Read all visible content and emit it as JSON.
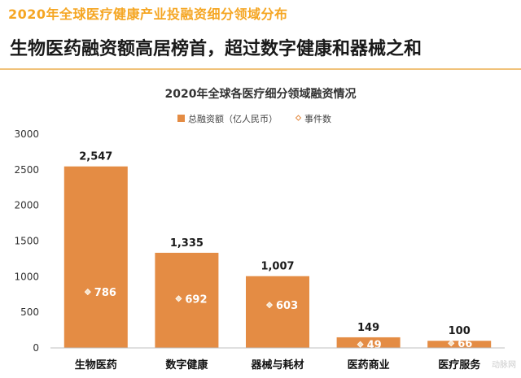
{
  "header": {
    "title": "2020年全球医疗健康产业投融资细分领域分布",
    "subtitle": "生物医药融资额高居榜首，超过数字健康和器械之和"
  },
  "colors": {
    "bar": "#E48C44",
    "header_title": "#F5A623",
    "marker": "#F7E3C8",
    "count_label_last": "#C0392B"
  },
  "watermark": "动脉网",
  "chart_data": {
    "type": "bar",
    "title": "2020年全球各医疗细分领域融资情况",
    "categories": [
      "生物医药",
      "数字健康",
      "器械与耗材",
      "医药商业",
      "医疗服务"
    ],
    "series": [
      {
        "name": "总融资额（亿人民币）",
        "values": [
          2547,
          1335,
          1007,
          149,
          100
        ],
        "value_labels": [
          "2,547",
          "1,335",
          "1,007",
          "149",
          "100"
        ]
      },
      {
        "name": "事件数",
        "values": [
          786,
          692,
          603,
          49,
          66
        ],
        "marker": "diamond"
      }
    ],
    "yticks": [
      0,
      500,
      1000,
      1500,
      2000,
      2500,
      3000
    ],
    "ylim": [
      0,
      3000
    ],
    "legend_position": "top-center",
    "grid": false
  }
}
